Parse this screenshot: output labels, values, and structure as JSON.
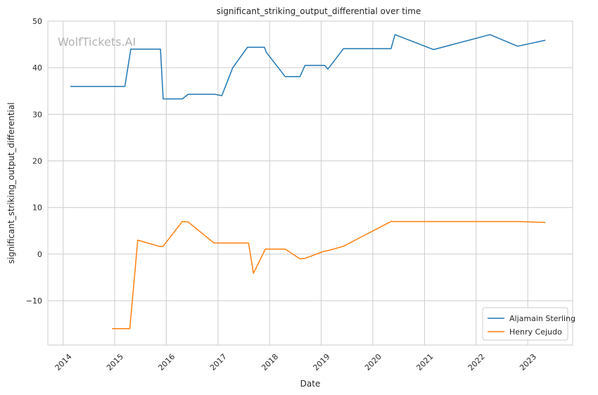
{
  "chart_data": {
    "type": "line",
    "title": "significant_striking_output_differential over time",
    "xlabel": "Date",
    "ylabel": "significant_striking_output_differential",
    "watermark": "WolfTickets.AI",
    "xlim": [
      "2013-09-15",
      "2023-11-15"
    ],
    "ylim": [
      -19.5,
      50
    ],
    "x_ticks": [
      "2014",
      "2015",
      "2016",
      "2017",
      "2018",
      "2019",
      "2020",
      "2021",
      "2022",
      "2023"
    ],
    "y_ticks": [
      -10,
      0,
      10,
      20,
      30,
      40,
      50
    ],
    "grid": true,
    "legend_position": "lower-right",
    "series": [
      {
        "name": "Aljamain Sterling",
        "color": "#1f77b4",
        "points": [
          [
            "2014-02-22",
            36.0
          ],
          [
            "2015-03-14",
            36.0
          ],
          [
            "2015-04-25",
            44.0
          ],
          [
            "2015-11-21",
            44.0
          ],
          [
            "2015-12-10",
            33.3
          ],
          [
            "2016-04-23",
            33.3
          ],
          [
            "2016-06-04",
            34.3
          ],
          [
            "2016-12-09",
            34.3
          ],
          [
            "2017-01-28",
            34.0
          ],
          [
            "2017-04-15",
            40.0
          ],
          [
            "2017-07-29",
            44.4
          ],
          [
            "2017-11-25",
            44.4
          ],
          [
            "2017-12-09",
            43.3
          ],
          [
            "2018-04-21",
            38.1
          ],
          [
            "2018-08-04",
            38.1
          ],
          [
            "2018-09-08",
            40.5
          ],
          [
            "2019-01-26",
            40.5
          ],
          [
            "2019-02-17",
            39.7
          ],
          [
            "2019-06-08",
            44.1
          ],
          [
            "2020-05-09",
            44.1
          ],
          [
            "2020-06-06",
            47.1
          ],
          [
            "2021-03-06",
            43.9
          ],
          [
            "2022-04-09",
            47.1
          ],
          [
            "2022-10-22",
            44.6
          ],
          [
            "2023-05-06",
            45.9
          ]
        ]
      },
      {
        "name": "Henry Cejudo",
        "color": "#ff7f0e",
        "points": [
          [
            "2014-12-13",
            -16.0
          ],
          [
            "2015-04-18",
            -16.0
          ],
          [
            "2015-06-13",
            3.0
          ],
          [
            "2015-11-21",
            1.6
          ],
          [
            "2015-12-10",
            1.7
          ],
          [
            "2016-04-23",
            7.0
          ],
          [
            "2016-06-04",
            6.9
          ],
          [
            "2016-12-03",
            2.4
          ],
          [
            "2017-08-05",
            2.4
          ],
          [
            "2017-09-09",
            -4.1
          ],
          [
            "2017-12-02",
            1.1
          ],
          [
            "2018-04-21",
            1.1
          ],
          [
            "2018-08-04",
            -1.0
          ],
          [
            "2018-09-08",
            -0.9
          ],
          [
            "2019-01-19",
            0.6
          ],
          [
            "2019-02-24",
            0.8
          ],
          [
            "2019-06-08",
            1.7
          ],
          [
            "2020-05-09",
            7.0
          ],
          [
            "2022-10-22",
            7.0
          ],
          [
            "2023-05-06",
            6.8
          ]
        ]
      }
    ]
  }
}
